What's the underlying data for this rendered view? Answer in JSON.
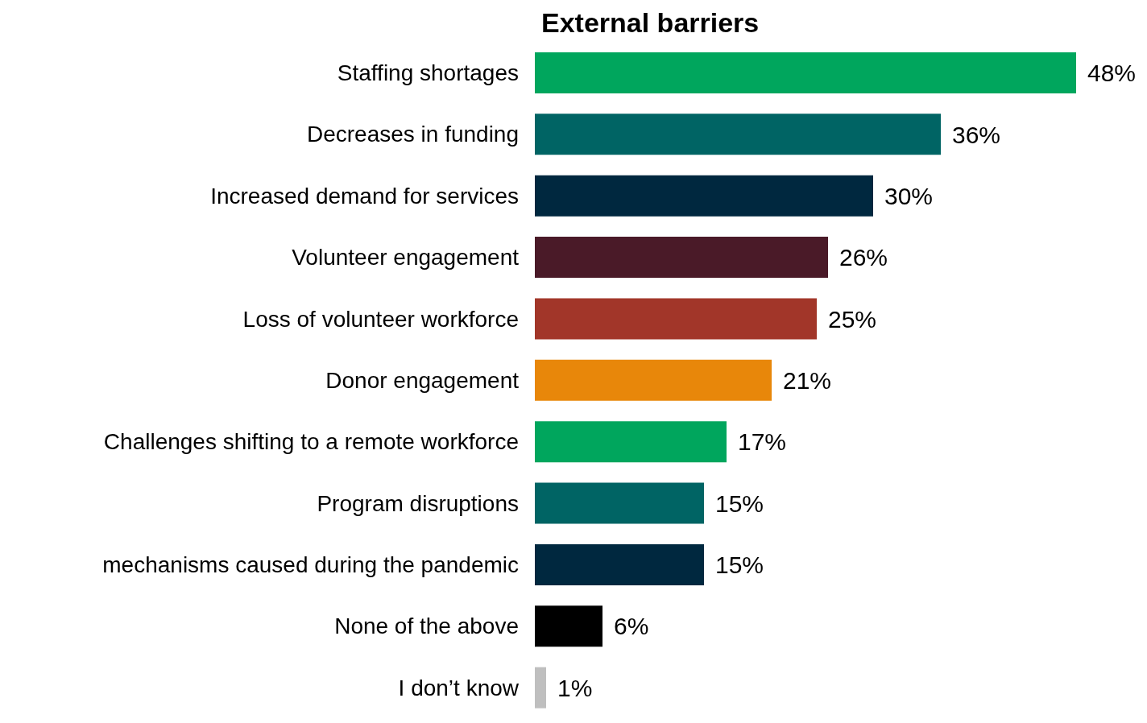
{
  "chart_data": {
    "type": "bar",
    "orientation": "horizontal",
    "title": "External barriers",
    "categories": [
      "Staffing shortages",
      "Decreases in funding",
      "Increased demand for services",
      "Volunteer engagement",
      "Loss of volunteer workforce",
      "Donor engagement",
      "Challenges shifting to a remote workforce",
      "Program disruptions",
      "mechanisms caused during the pandemic",
      "None of the above",
      "I don’t know"
    ],
    "values": [
      48,
      36,
      30,
      26,
      25,
      21,
      17,
      15,
      15,
      6,
      1
    ],
    "value_labels": [
      "48%",
      "36%",
      "30%",
      "26%",
      "25%",
      "21%",
      "17%",
      "15%",
      "15%",
      "6%",
      "1%"
    ],
    "colors": [
      "#00a65d",
      "#006464",
      "#00283f",
      "#4a1a28",
      "#a23629",
      "#e8870a",
      "#00a65d",
      "#006464",
      "#00283f",
      "#000000",
      "#bfbfbf"
    ],
    "legend": false,
    "grid": false
  }
}
